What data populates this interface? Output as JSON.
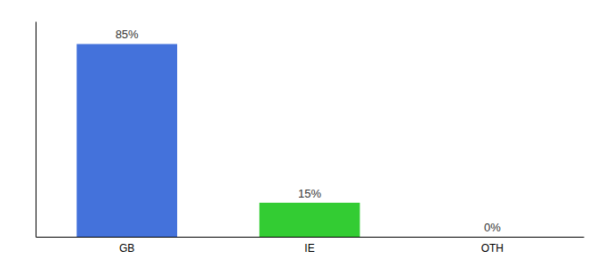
{
  "chart_data": {
    "type": "bar",
    "categories": [
      "GB",
      "IE",
      "OTH"
    ],
    "values": [
      85,
      15,
      0
    ],
    "value_labels": [
      "85%",
      "15%",
      "0%"
    ],
    "colors": [
      "#4472db",
      "#33cc33",
      "#cccccc"
    ],
    "ylim": [
      0,
      95
    ],
    "data_labels": true,
    "tick_labels": "x"
  }
}
